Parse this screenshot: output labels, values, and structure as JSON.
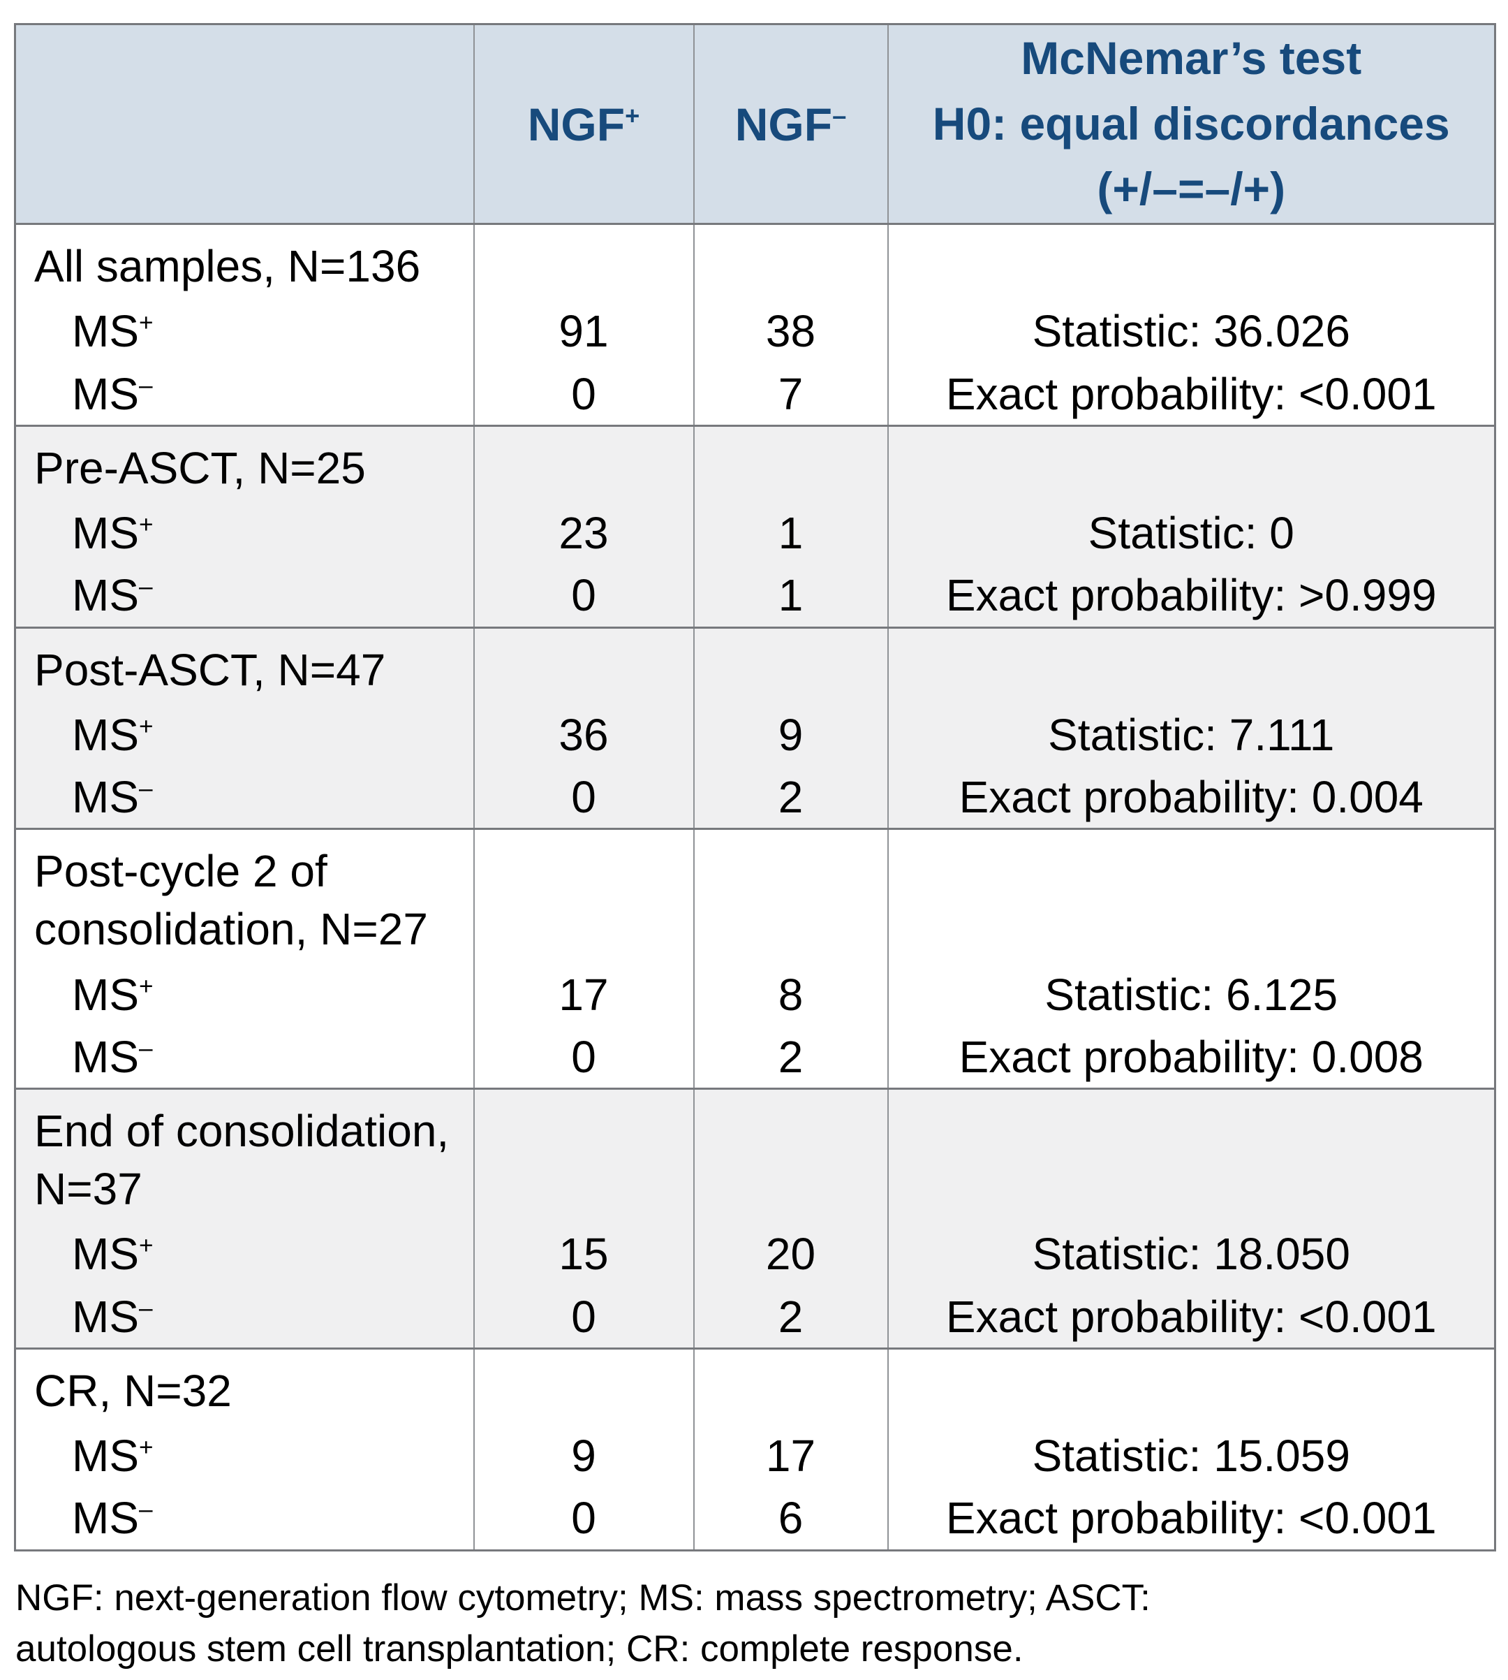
{
  "header": {
    "corner": "",
    "col_ngf_pos": {
      "base": "NGF",
      "sup": "+"
    },
    "col_ngf_neg": {
      "base": "NGF",
      "sup": "–"
    },
    "mcnemar": {
      "line1": "McNemar’s test",
      "line2": "H0: equal discordances",
      "line3": "(+/–=–/+)"
    }
  },
  "groups": [
    {
      "title": "All samples, N=136",
      "shaded": false,
      "rows": [
        {
          "label_base": "MS",
          "label_sup": "+",
          "ngf_pos": "91",
          "ngf_neg": "38",
          "stat": "Statistic: 36.026"
        },
        {
          "label_base": "MS",
          "label_sup": "–",
          "ngf_pos": "0",
          "ngf_neg": "7",
          "stat": "Exact probability: <0.001"
        }
      ]
    },
    {
      "title": "Pre-ASCT, N=25",
      "shaded": true,
      "rows": [
        {
          "label_base": "MS",
          "label_sup": "+",
          "ngf_pos": "23",
          "ngf_neg": "1",
          "stat": "Statistic: 0"
        },
        {
          "label_base": "MS",
          "label_sup": "–",
          "ngf_pos": "0",
          "ngf_neg": "1",
          "stat": "Exact probability: >0.999"
        }
      ]
    },
    {
      "title": "Post-ASCT, N=47",
      "shaded": true,
      "rows": [
        {
          "label_base": "MS",
          "label_sup": "+",
          "ngf_pos": "36",
          "ngf_neg": "9",
          "stat": "Statistic: 7.111"
        },
        {
          "label_base": "MS",
          "label_sup": "–",
          "ngf_pos": "0",
          "ngf_neg": "2",
          "stat": "Exact probability: 0.004"
        }
      ]
    },
    {
      "title": "Post-cycle 2 of consolidation, N=27",
      "shaded": false,
      "rows": [
        {
          "label_base": "MS",
          "label_sup": "+",
          "ngf_pos": "17",
          "ngf_neg": "8",
          "stat": "Statistic: 6.125"
        },
        {
          "label_base": "MS",
          "label_sup": "–",
          "ngf_pos": "0",
          "ngf_neg": "2",
          "stat": "Exact probability: 0.008"
        }
      ]
    },
    {
      "title": "End of consolidation, N=37",
      "shaded": true,
      "rows": [
        {
          "label_base": "MS",
          "label_sup": "+",
          "ngf_pos": "15",
          "ngf_neg": "20",
          "stat": "Statistic: 18.050"
        },
        {
          "label_base": "MS",
          "label_sup": "–",
          "ngf_pos": "0",
          "ngf_neg": "2",
          "stat": "Exact probability: <0.001"
        }
      ]
    },
    {
      "title": "CR, N=32",
      "shaded": false,
      "rows": [
        {
          "label_base": "MS",
          "label_sup": "+",
          "ngf_pos": "9",
          "ngf_neg": "17",
          "stat": "Statistic: 15.059"
        },
        {
          "label_base": "MS",
          "label_sup": "–",
          "ngf_pos": "0",
          "ngf_neg": "6",
          "stat": "Exact probability: <0.001"
        }
      ]
    }
  ],
  "footnote": {
    "line1": "NGF: next-generation flow cytometry; MS: mass spectrometry; ASCT:",
    "line2": "autologous stem cell transplantation; CR: complete response."
  },
  "colors": {
    "header_bg": "#d4dee8",
    "header_text": "#174a7c",
    "shaded_row_bg": "#f0f0f1",
    "border_heavy": "#77797d",
    "border_light": "#8f9296"
  }
}
